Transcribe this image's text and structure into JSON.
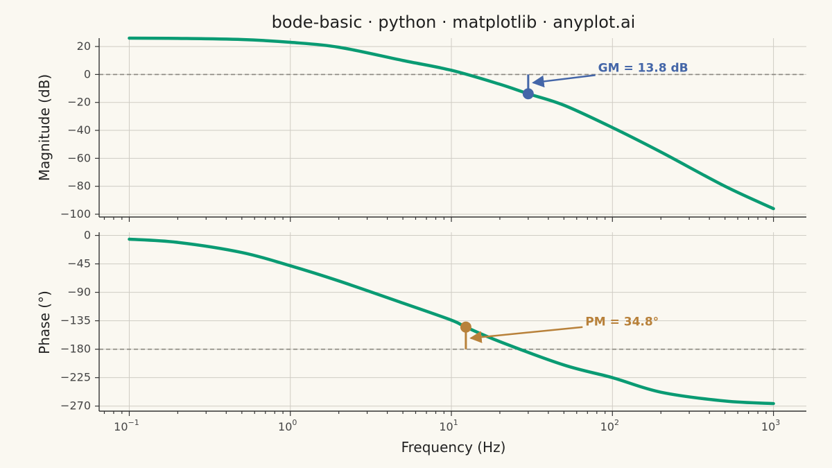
{
  "chart_data": {
    "type": "line",
    "title": "bode-basic · python · matplotlib · anyplot.ai",
    "xlabel": "Frequency (Hz)",
    "xscale": "log",
    "xlim": [
      0.065,
      1600
    ],
    "xticks": [
      {
        "base": "10",
        "exp": "−1"
      },
      {
        "base": "10",
        "exp": "0"
      },
      {
        "base": "10",
        "exp": "1"
      },
      {
        "base": "10",
        "exp": "2"
      },
      {
        "base": "10",
        "exp": "3"
      }
    ],
    "grid": true,
    "colors": {
      "series": "#0A9B73",
      "gm": "#4466A8",
      "pm": "#B8813A",
      "reference": "#8a8780"
    },
    "magnitude": {
      "ylabel": "Magnitude (dB)",
      "ylim": [
        -102,
        26
      ],
      "yticks": [
        "20",
        "0",
        "−20",
        "−40",
        "−60",
        "−80",
        "−100"
      ],
      "reference_y": 0,
      "x": [
        0.1,
        0.2,
        0.5,
        1,
        2,
        5,
        10,
        20,
        30,
        50,
        100,
        200,
        500,
        1000
      ],
      "y": [
        26.0,
        25.8,
        25.0,
        23.0,
        19.5,
        10.0,
        3.0,
        -7.0,
        -13.8,
        -22.0,
        -38.0,
        -55.5,
        -80.0,
        -96.0
      ]
    },
    "phase": {
      "ylabel": "Phase (°)",
      "ylim": [
        -278,
        5
      ],
      "yticks": [
        "0",
        "−45",
        "−90",
        "−135",
        "−180",
        "−225",
        "−270"
      ],
      "reference_y": -180,
      "x": [
        0.1,
        0.2,
        0.5,
        1,
        2,
        5,
        10,
        12.3,
        20,
        50,
        100,
        200,
        500,
        1000
      ],
      "y": [
        -6,
        -11,
        -27,
        -48,
        -72,
        -107,
        -134,
        -145,
        -168,
        -205,
        -225,
        -248,
        -262,
        -266
      ]
    },
    "annotations": [
      {
        "label": "GM = 13.8 dB",
        "panel": "magnitude",
        "x": 30,
        "y": -13.8,
        "reference_y": 0,
        "text_x": 90,
        "text_y": 0
      },
      {
        "label": "PM = 34.8°",
        "panel": "phase",
        "x": 12.3,
        "y": -145,
        "reference_y": -180,
        "text_x": 75,
        "text_y": -145
      }
    ]
  }
}
